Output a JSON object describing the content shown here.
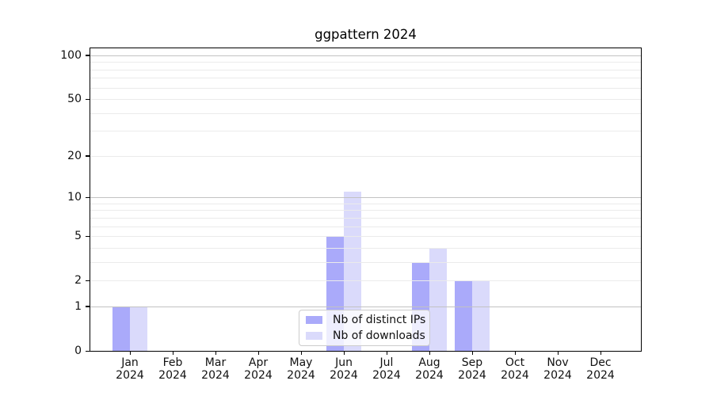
{
  "chart_data": {
    "type": "bar",
    "title": "ggpattern 2024",
    "categories": [
      "Jan",
      "Feb",
      "Mar",
      "Apr",
      "May",
      "Jun",
      "Jul",
      "Aug",
      "Sep",
      "Oct",
      "Nov",
      "Dec"
    ],
    "x_year_label": "2024",
    "series": [
      {
        "name": "Nb of distinct IPs",
        "color": "#aaaafa",
        "values": [
          1,
          0,
          0,
          0,
          0,
          5,
          0,
          3,
          2,
          0,
          0,
          0
        ]
      },
      {
        "name": "Nb of downloads",
        "color": "#dadafb",
        "values": [
          1,
          0,
          0,
          0,
          0,
          11,
          0,
          4,
          2,
          0,
          0,
          0
        ]
      }
    ],
    "yscale": "log1p",
    "ylim": [
      0,
      113
    ],
    "yticks": [
      0,
      1,
      2,
      5,
      10,
      20,
      50,
      100
    ],
    "ytick_labels": [
      "0",
      "1",
      "2",
      "5",
      "10",
      "20",
      "50",
      "100"
    ],
    "major_gridlines": [
      1,
      10,
      100
    ],
    "minor_gridlines": [
      2,
      3,
      4,
      5,
      6,
      7,
      8,
      9,
      20,
      30,
      40,
      50,
      60,
      70,
      80,
      90
    ],
    "colors": {
      "grid_major": "#c2c2c2",
      "grid_minor": "#ebebeb",
      "spine": "#000000",
      "text": "#111111"
    },
    "legend_position": "lower center",
    "grid": "on",
    "xlabel": "",
    "ylabel": ""
  }
}
